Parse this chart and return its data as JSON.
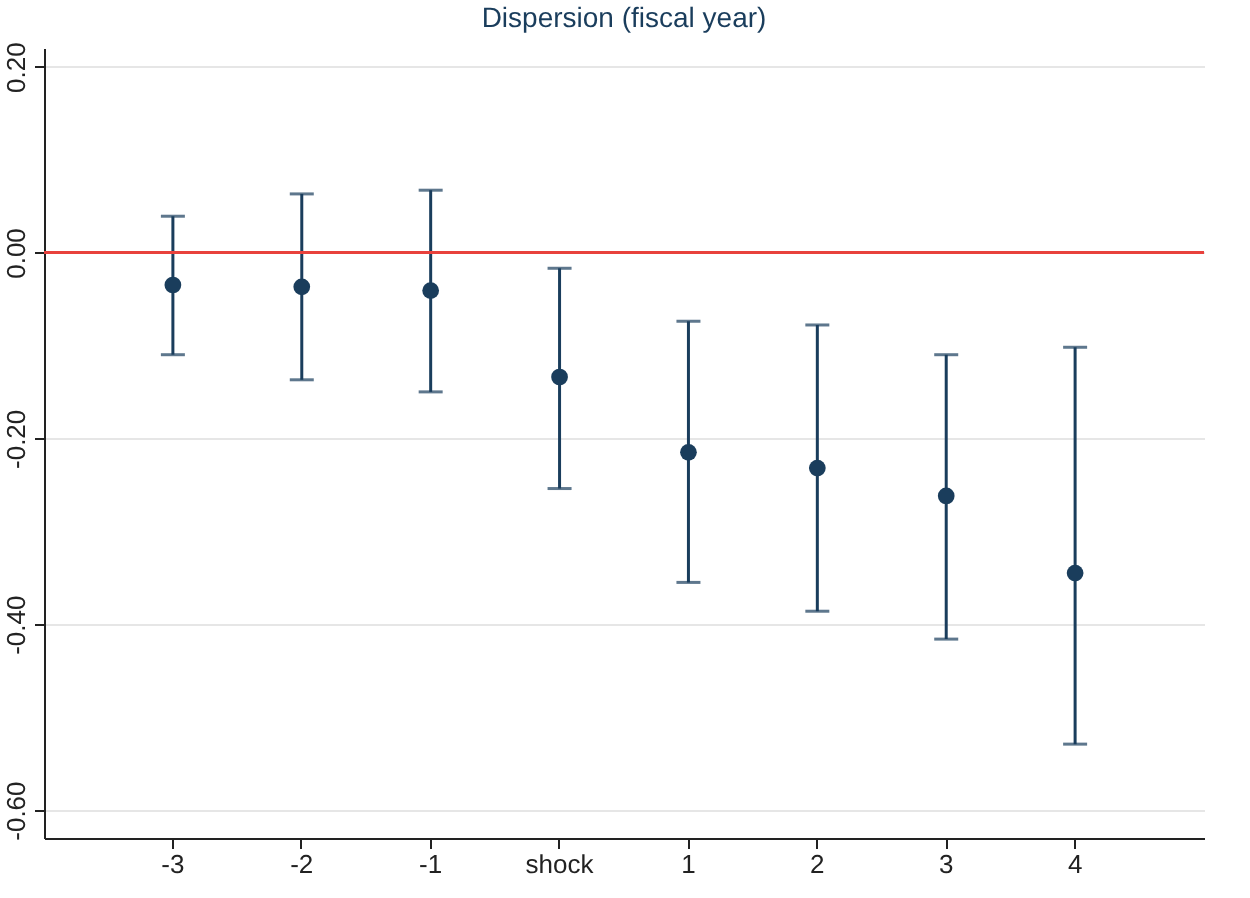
{
  "chart_data": {
    "type": "scatter",
    "title": "Dispersion (fiscal year)",
    "categories": [
      "-3",
      "-2",
      "-1",
      "shock",
      "1",
      "2",
      "3",
      "4"
    ],
    "series": [
      {
        "color": "#1a3d5c",
        "values": [
          -0.035,
          -0.037,
          -0.041,
          -0.134,
          -0.215,
          -0.232,
          -0.262,
          -0.345
        ],
        "errors": [
          [
            -0.11,
            0.039
          ],
          [
            -0.137,
            0.063
          ],
          [
            -0.15,
            0.067
          ],
          [
            -0.254,
            -0.017
          ],
          [
            -0.355,
            -0.074
          ],
          [
            -0.386,
            -0.078
          ],
          [
            -0.416,
            -0.11
          ],
          [
            -0.529,
            -0.102
          ]
        ]
      }
    ],
    "ylim": [
      -0.63,
      0.22
    ],
    "yticks": [
      {
        "value": -0.6,
        "label": "-0.60"
      },
      {
        "value": -0.4,
        "label": "-0.40"
      },
      {
        "value": -0.2,
        "label": "-0.20"
      },
      {
        "value": 0,
        "label": "0.00"
      },
      {
        "value": 0.2,
        "label": "0.20"
      }
    ],
    "grid": "y",
    "marker": "circle",
    "ref_lines": [
      {
        "axis": "y",
        "value": 0,
        "color": "#e8413c"
      }
    ]
  }
}
